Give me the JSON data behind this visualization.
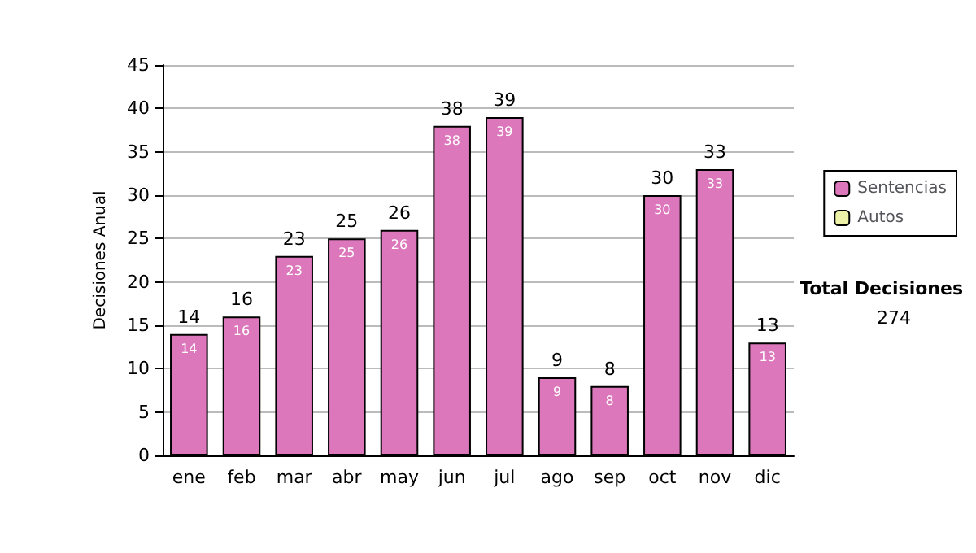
{
  "chart_data": {
    "type": "bar",
    "ylabel": "Decisiones Anual",
    "categories": [
      "ene",
      "feb",
      "mar",
      "abr",
      "may",
      "jun",
      "jul",
      "ago",
      "sep",
      "oct",
      "nov",
      "dic"
    ],
    "series": [
      {
        "name": "Sentencias",
        "color": "#dd77bb",
        "values": [
          14,
          16,
          23,
          25,
          26,
          38,
          39,
          9,
          8,
          30,
          33,
          13
        ],
        "value_labels": [
          "14",
          "16",
          "23",
          "25",
          "26",
          "38",
          "39",
          "9",
          "8",
          "30",
          "33",
          "13"
        ]
      },
      {
        "name": "Autos",
        "color": "#eef2a8",
        "values": [
          null,
          null,
          null,
          null,
          null,
          null,
          null,
          null,
          null,
          null,
          null,
          null
        ]
      }
    ],
    "stacked": true,
    "totals": [
      "14",
      "16",
      "23",
      "25",
      "26",
      "38",
      "39",
      "9",
      "8",
      "30",
      "33",
      "13"
    ],
    "ylim": [
      0,
      45
    ],
    "yticks": [
      0,
      5,
      10,
      15,
      20,
      25,
      30,
      35,
      40,
      45
    ],
    "grid": "y",
    "legend": "right",
    "annotations": [
      "Total Decisiones",
      "274"
    ]
  }
}
